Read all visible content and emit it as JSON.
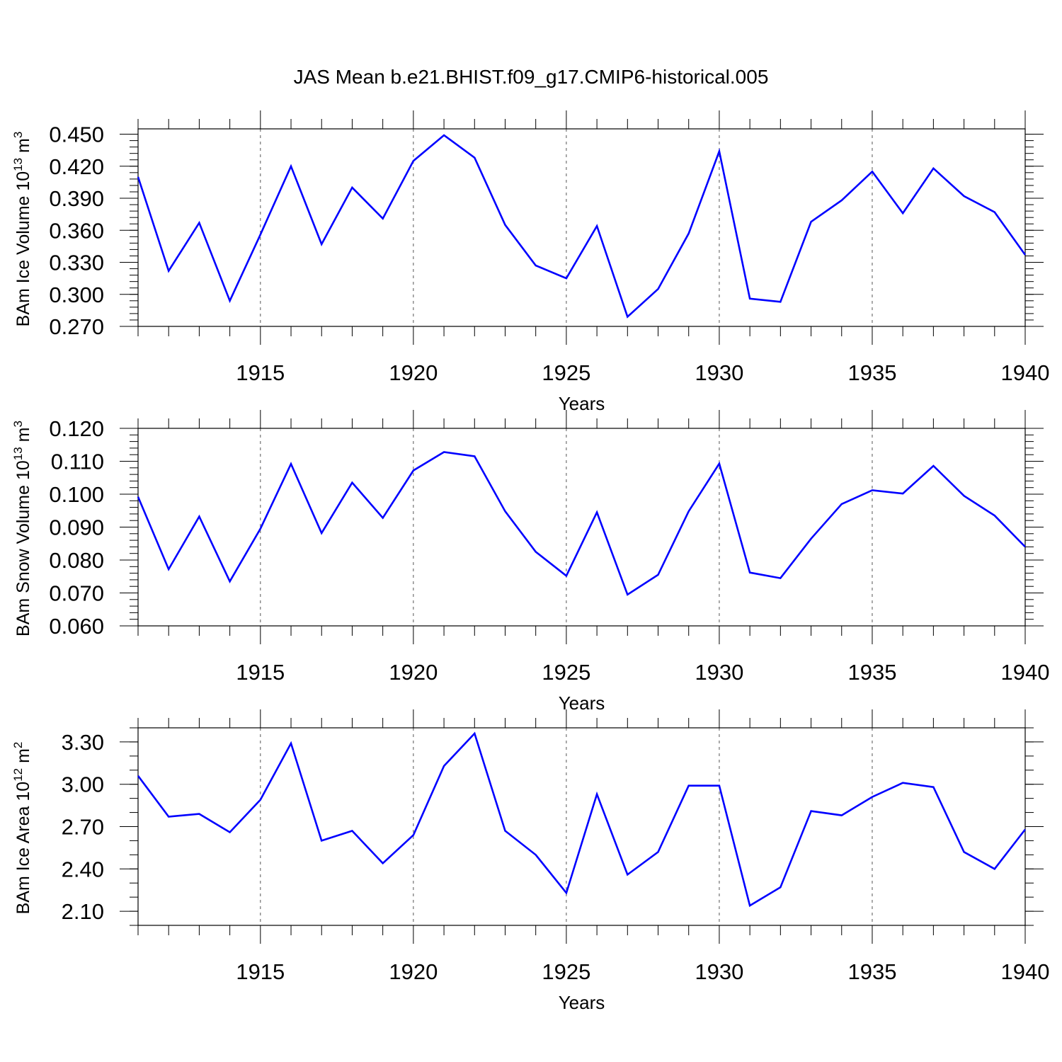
{
  "title": "JAS Mean b.e21.BHIST.f09_g17.CMIP6-historical.005",
  "colors": {
    "line": "#0000ff",
    "axis": "#000000",
    "grid": "#555555"
  },
  "chart_data": [
    {
      "type": "line",
      "ylabel_main": "BAm Ice Volume 10",
      "ylabel_exp": "13",
      "ylabel_unit": " m",
      "ylabel_unit_exp": "3",
      "xlabel": "Years",
      "xlim": [
        1911,
        1940
      ],
      "ylim": [
        0.27,
        0.455
      ],
      "x_ticks": [
        1915,
        1920,
        1925,
        1930,
        1935,
        1940
      ],
      "y_ticks": [
        0.27,
        0.3,
        0.33,
        0.36,
        0.39,
        0.42,
        0.45
      ],
      "y_tick_labels": [
        "0.270",
        "0.300",
        "0.330",
        "0.360",
        "0.390",
        "0.420",
        "0.450"
      ],
      "y_minor_step": 0.006,
      "grid": "dashed vertical at major x ticks",
      "series": [
        {
          "x": [
            1911,
            1912,
            1913,
            1914,
            1915,
            1916,
            1917,
            1918,
            1919,
            1920,
            1921,
            1922,
            1923,
            1924,
            1925,
            1926,
            1927,
            1928,
            1929,
            1930,
            1931,
            1932,
            1933,
            1934,
            1935,
            1936,
            1937,
            1938,
            1939,
            1940
          ],
          "values": [
            0.41,
            0.322,
            0.367,
            0.294,
            0.356,
            0.42,
            0.347,
            0.4,
            0.371,
            0.425,
            0.449,
            0.428,
            0.365,
            0.327,
            0.315,
            0.364,
            0.279,
            0.305,
            0.357,
            0.434,
            0.296,
            0.293,
            0.368,
            0.388,
            0.415,
            0.376,
            0.418,
            0.392,
            0.377,
            0.337
          ]
        }
      ]
    },
    {
      "type": "line",
      "ylabel_main": "BAm Snow Volume 10",
      "ylabel_exp": "13",
      "ylabel_unit": " m",
      "ylabel_unit_exp": "3",
      "xlabel": "Years",
      "xlim": [
        1911,
        1940
      ],
      "ylim": [
        0.06,
        0.12
      ],
      "x_ticks": [
        1915,
        1920,
        1925,
        1930,
        1935,
        1940
      ],
      "y_ticks": [
        0.06,
        0.07,
        0.08,
        0.09,
        0.1,
        0.11,
        0.12
      ],
      "y_tick_labels": [
        "0.060",
        "0.070",
        "0.080",
        "0.090",
        "0.100",
        "0.110",
        "0.120"
      ],
      "y_minor_step": 0.002,
      "grid": "dashed vertical at major x ticks",
      "series": [
        {
          "x": [
            1911,
            1912,
            1913,
            1914,
            1915,
            1916,
            1917,
            1918,
            1919,
            1920,
            1921,
            1922,
            1923,
            1924,
            1925,
            1926,
            1927,
            1928,
            1929,
            1930,
            1931,
            1932,
            1933,
            1934,
            1935,
            1936,
            1937,
            1938,
            1939,
            1940
          ],
          "values": [
            0.0992,
            0.0772,
            0.0932,
            0.0735,
            0.0895,
            0.1092,
            0.0882,
            0.1035,
            0.0928,
            0.1072,
            0.1128,
            0.1115,
            0.0948,
            0.0825,
            0.0752,
            0.0945,
            0.0695,
            0.0755,
            0.0948,
            0.1093,
            0.0762,
            0.0745,
            0.0865,
            0.097,
            0.1012,
            0.1002,
            0.1086,
            0.0995,
            0.0935,
            0.084
          ]
        }
      ]
    },
    {
      "type": "line",
      "ylabel_main": "BAm Ice Area 10",
      "ylabel_exp": "12",
      "ylabel_unit": " m",
      "ylabel_unit_exp": "2",
      "xlabel": "Years",
      "xlim": [
        1911,
        1940
      ],
      "ylim": [
        2.0,
        3.4
      ],
      "x_ticks": [
        1915,
        1920,
        1925,
        1930,
        1935,
        1940
      ],
      "y_ticks": [
        2.1,
        2.4,
        2.7,
        3.0,
        3.3
      ],
      "y_tick_labels": [
        "2.10",
        "2.40",
        "2.70",
        "3.00",
        "3.30"
      ],
      "y_minor_step": 0.1,
      "grid": "dashed vertical at major x ticks",
      "series": [
        {
          "x": [
            1911,
            1912,
            1913,
            1914,
            1915,
            1916,
            1917,
            1918,
            1919,
            1920,
            1921,
            1922,
            1923,
            1924,
            1925,
            1926,
            1927,
            1928,
            1929,
            1930,
            1931,
            1932,
            1933,
            1934,
            1935,
            1936,
            1937,
            1938,
            1939,
            1940
          ],
          "values": [
            3.06,
            2.77,
            2.79,
            2.66,
            2.89,
            3.29,
            2.6,
            2.67,
            2.44,
            2.64,
            3.13,
            3.36,
            2.67,
            2.5,
            2.23,
            2.93,
            2.36,
            2.52,
            2.99,
            2.99,
            2.14,
            2.27,
            2.81,
            2.78,
            2.91,
            3.01,
            2.98,
            2.52,
            2.4,
            2.68
          ]
        }
      ]
    }
  ]
}
